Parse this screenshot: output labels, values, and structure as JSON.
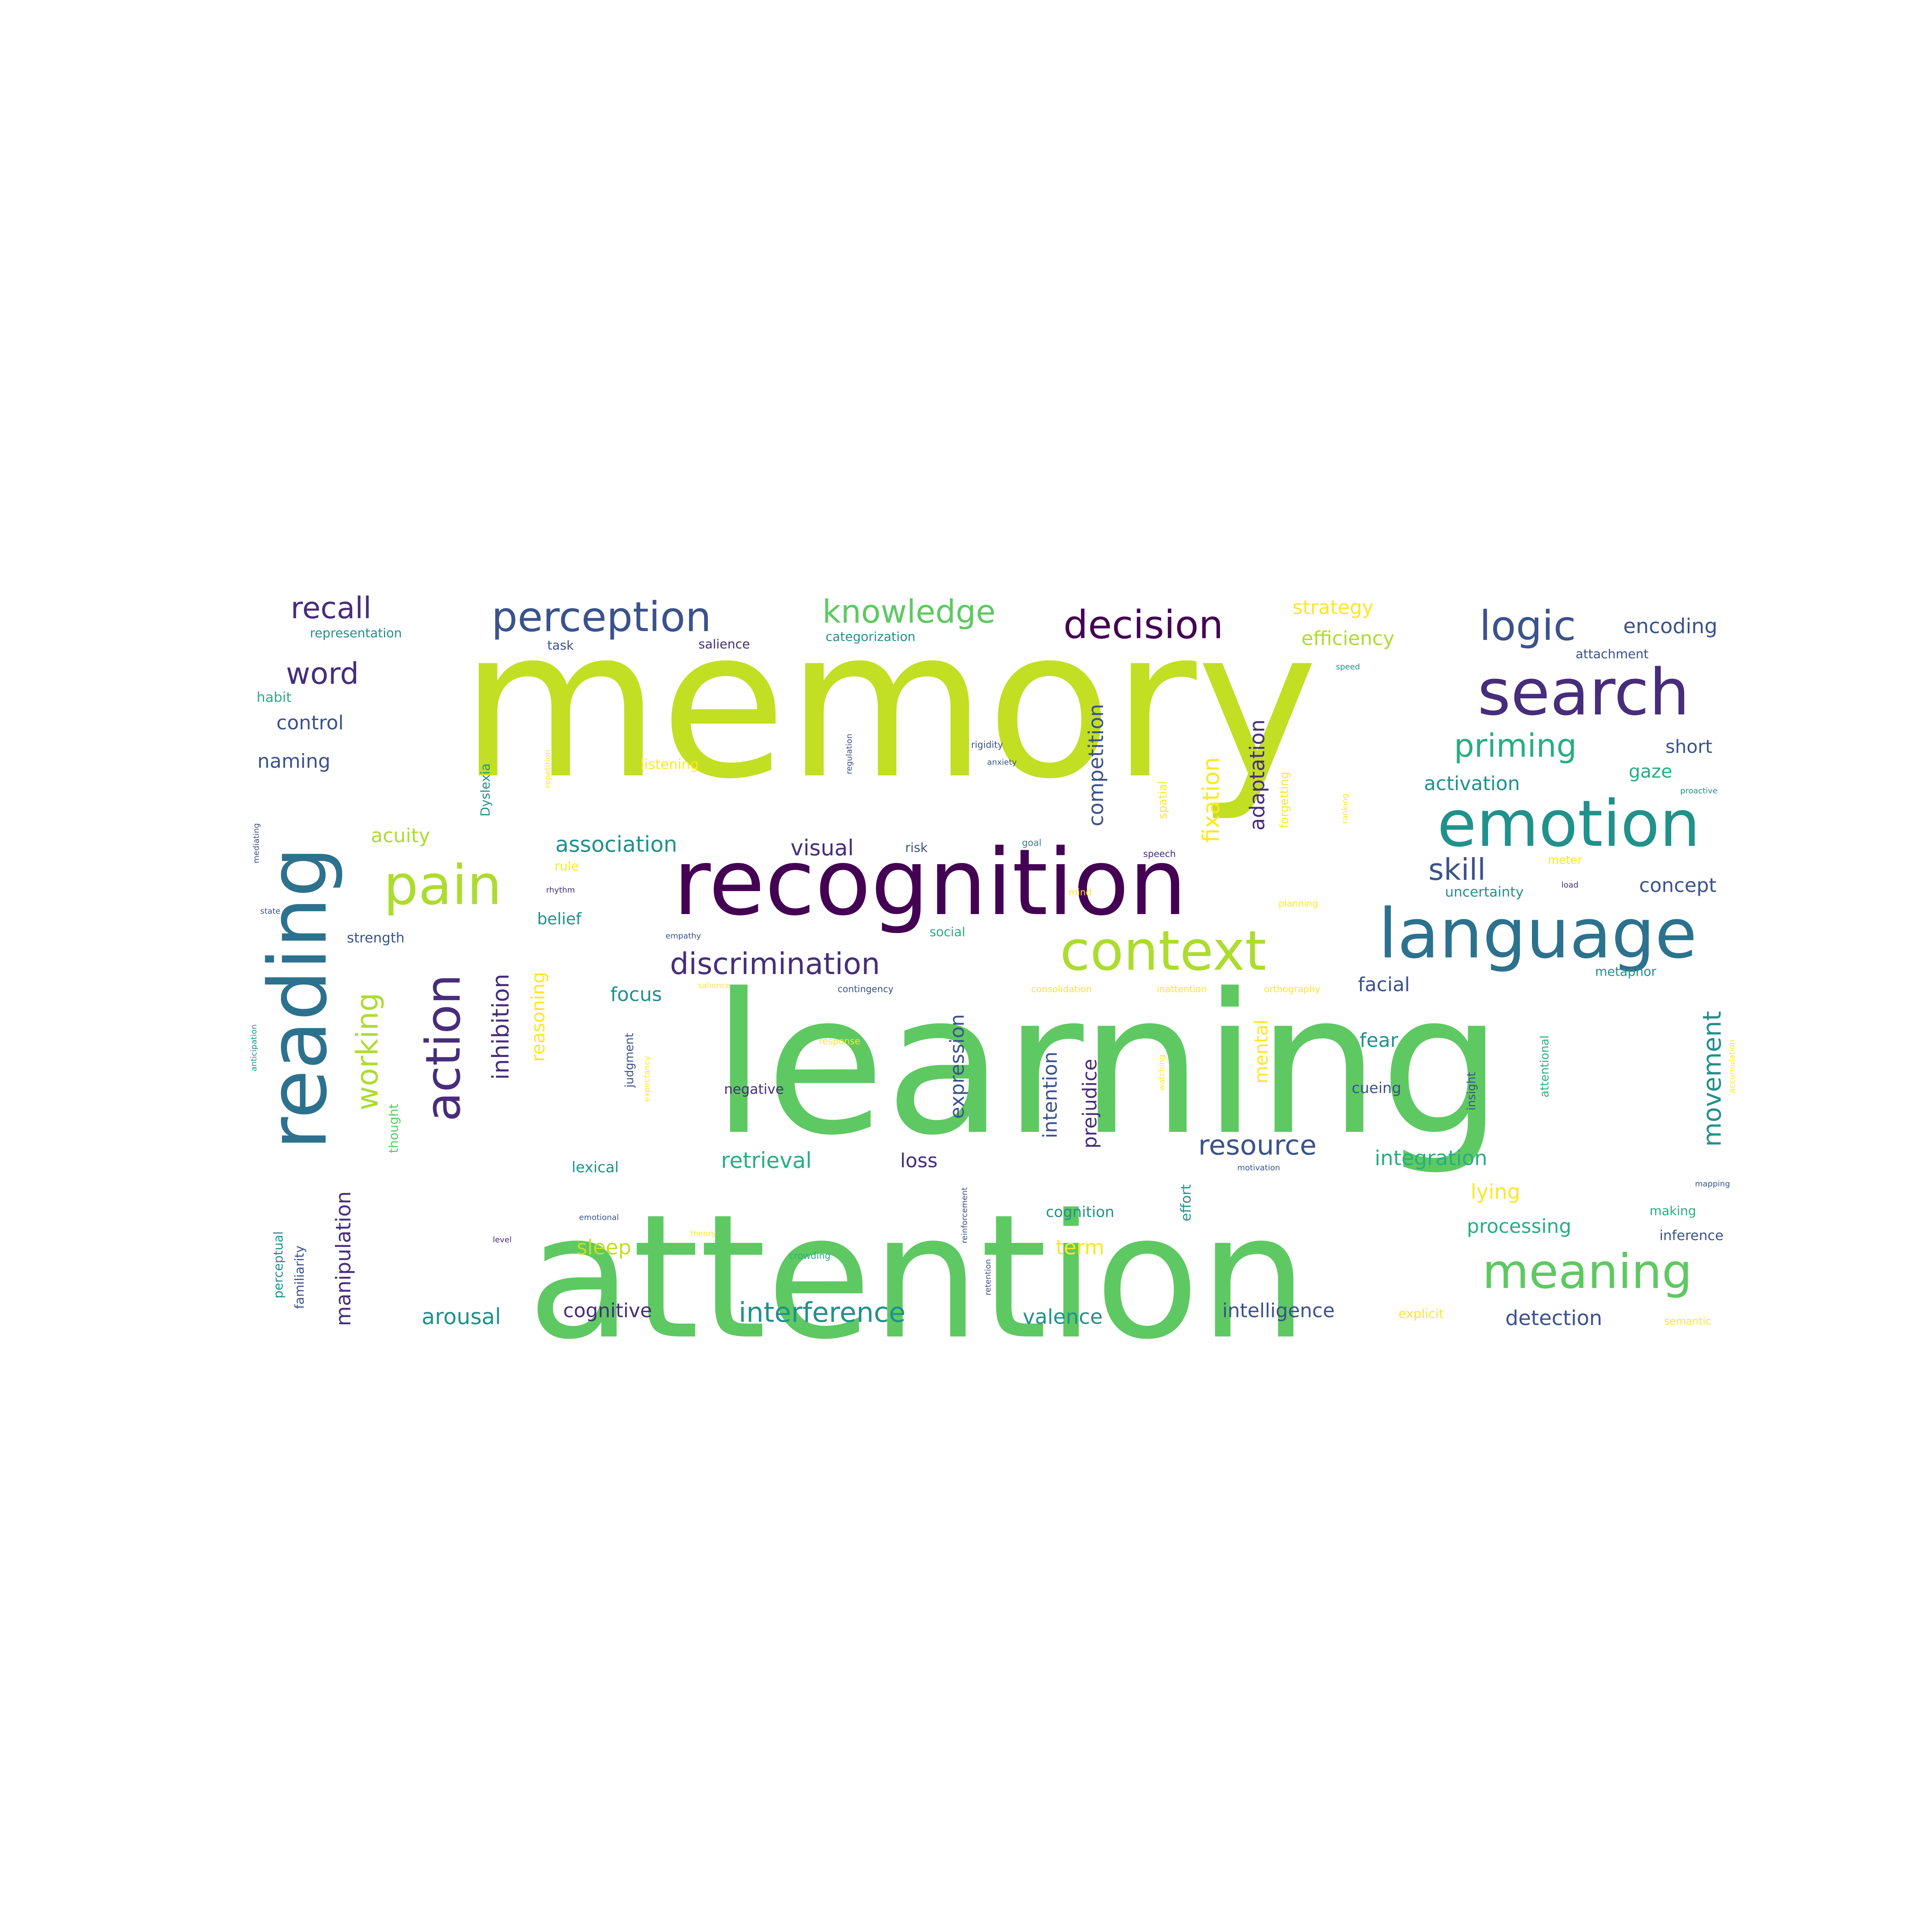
{
  "colors": {
    "purple": "#440154",
    "indigo": "#472d7b",
    "slate": "#3b528b",
    "blue": "#2c728e",
    "teal": "#21918c",
    "sea": "#28ae80",
    "green": "#5ec962",
    "lime": "#addc30",
    "yellowgreen": "#c2df23",
    "yellow": "#fde725"
  },
  "words": [
    {
      "text": "memory",
      "color": "yellowgreen"
    },
    {
      "text": "learning",
      "color": "green"
    },
    {
      "text": "attention",
      "color": "green"
    },
    {
      "text": "recognition",
      "color": "purple"
    },
    {
      "text": "reading",
      "color": "blue"
    },
    {
      "text": "language",
      "color": "blue"
    },
    {
      "text": "emotion",
      "color": "teal"
    },
    {
      "text": "search",
      "color": "indigo"
    },
    {
      "text": "context",
      "color": "lime"
    },
    {
      "text": "pain",
      "color": "lime"
    },
    {
      "text": "action",
      "color": "indigo"
    },
    {
      "text": "meaning",
      "color": "green"
    },
    {
      "text": "logic",
      "color": "slate"
    },
    {
      "text": "perception",
      "color": "slate"
    },
    {
      "text": "decision",
      "color": "purple"
    },
    {
      "text": "knowledge",
      "color": "green"
    },
    {
      "text": "recall",
      "color": "indigo"
    },
    {
      "text": "priming",
      "color": "sea"
    },
    {
      "text": "discrimination",
      "color": "indigo"
    },
    {
      "text": "word",
      "color": "indigo"
    },
    {
      "text": "working",
      "color": "lime"
    },
    {
      "text": "skill",
      "color": "slate"
    },
    {
      "text": "interference",
      "color": "teal"
    },
    {
      "text": "resource",
      "color": "slate"
    },
    {
      "text": "movement",
      "color": "teal"
    },
    {
      "text": "inhibition",
      "color": "indigo"
    },
    {
      "text": "fixation",
      "color": "yellow"
    },
    {
      "text": "manipulation",
      "color": "indigo"
    },
    {
      "text": "competition",
      "color": "slate"
    },
    {
      "text": "adaptation",
      "color": "indigo"
    },
    {
      "text": "association",
      "color": "teal"
    },
    {
      "text": "visual",
      "color": "indigo"
    },
    {
      "text": "encoding",
      "color": "slate"
    },
    {
      "text": "strategy",
      "color": "yellow"
    },
    {
      "text": "efficiency",
      "color": "lime"
    },
    {
      "text": "control",
      "color": "slate"
    },
    {
      "text": "naming",
      "color": "slate"
    },
    {
      "text": "acuity",
      "color": "lime"
    },
    {
      "text": "activation",
      "color": "teal"
    },
    {
      "text": "short",
      "color": "slate"
    },
    {
      "text": "gaze",
      "color": "sea"
    },
    {
      "text": "concept",
      "color": "slate"
    },
    {
      "text": "expression",
      "color": "slate"
    },
    {
      "text": "intention",
      "color": "slate"
    },
    {
      "text": "prejudice",
      "color": "indigo"
    },
    {
      "text": "reasoning",
      "color": "yellow"
    },
    {
      "text": "facial",
      "color": "slate"
    },
    {
      "text": "fear",
      "color": "teal"
    },
    {
      "text": "focus",
      "color": "teal"
    },
    {
      "text": "retrieval",
      "color": "sea"
    },
    {
      "text": "loss",
      "color": "indigo"
    },
    {
      "text": "integration",
      "color": "sea"
    },
    {
      "text": "lying",
      "color": "yellow"
    },
    {
      "text": "processing",
      "color": "sea"
    },
    {
      "text": "sleep",
      "color": "yellowgreen"
    },
    {
      "text": "term",
      "color": "yellow"
    },
    {
      "text": "arousal",
      "color": "teal"
    },
    {
      "text": "cognitive",
      "color": "indigo"
    },
    {
      "text": "valence",
      "color": "teal"
    },
    {
      "text": "intelligence",
      "color": "slate"
    },
    {
      "text": "detection",
      "color": "slate"
    },
    {
      "text": "mental",
      "color": "yellow"
    },
    {
      "text": "belief",
      "color": "teal"
    },
    {
      "text": "lexical",
      "color": "teal"
    },
    {
      "text": "cognition",
      "color": "teal"
    },
    {
      "text": "cueing",
      "color": "slate"
    },
    {
      "text": "uncertainty",
      "color": "teal"
    },
    {
      "text": "representation",
      "color": "teal"
    },
    {
      "text": "task",
      "color": "slate"
    },
    {
      "text": "salience",
      "color": "indigo"
    },
    {
      "text": "categorization",
      "color": "teal"
    },
    {
      "text": "attachment",
      "color": "slate"
    },
    {
      "text": "habit",
      "color": "sea"
    },
    {
      "text": "listening",
      "color": "yellow"
    },
    {
      "text": "risk",
      "color": "slate"
    },
    {
      "text": "rule",
      "color": "yellow"
    },
    {
      "text": "strength",
      "color": "slate"
    },
    {
      "text": "social",
      "color": "sea"
    },
    {
      "text": "negative",
      "color": "indigo"
    },
    {
      "text": "metaphor",
      "color": "teal"
    },
    {
      "text": "meter",
      "color": "yellow"
    },
    {
      "text": "explicit",
      "color": "yellow"
    },
    {
      "text": "semantic",
      "color": "yellow"
    },
    {
      "text": "inference",
      "color": "slate"
    },
    {
      "text": "making",
      "color": "sea"
    },
    {
      "text": "effort",
      "color": "teal"
    },
    {
      "text": "thought",
      "color": "green"
    },
    {
      "text": "perceptual",
      "color": "teal"
    },
    {
      "text": "familiarity",
      "color": "slate"
    },
    {
      "text": "Dyslexia",
      "color": "teal"
    },
    {
      "text": "judgment",
      "color": "slate"
    },
    {
      "text": "forgetting",
      "color": "yellow"
    },
    {
      "text": "spatial",
      "color": "yellow"
    },
    {
      "text": "attentional",
      "color": "sea"
    },
    {
      "text": "insight",
      "color": "slate"
    },
    {
      "text": "consolidation",
      "color": "yellow"
    },
    {
      "text": "inattention",
      "color": "yellow"
    },
    {
      "text": "orthography",
      "color": "yellow"
    },
    {
      "text": "contingency",
      "color": "slate"
    },
    {
      "text": "response",
      "color": "yellow"
    },
    {
      "text": "rigidity",
      "color": "slate"
    },
    {
      "text": "anxiety",
      "color": "slate"
    },
    {
      "text": "regulation",
      "color": "slate"
    },
    {
      "text": "repetition",
      "color": "yellow"
    },
    {
      "text": "goal",
      "color": "teal"
    },
    {
      "text": "speech",
      "color": "indigo"
    },
    {
      "text": "mind",
      "color": "yellow"
    },
    {
      "text": "planning",
      "color": "yellow"
    },
    {
      "text": "load",
      "color": "indigo"
    },
    {
      "text": "speed",
      "color": "teal"
    },
    {
      "text": "proactive",
      "color": "teal"
    },
    {
      "text": "rhythm",
      "color": "indigo"
    },
    {
      "text": "empathy",
      "color": "slate"
    },
    {
      "text": "state",
      "color": "slate"
    },
    {
      "text": "mediating",
      "color": "slate"
    },
    {
      "text": "anticipation",
      "color": "teal"
    },
    {
      "text": "salience",
      "color": "yellow"
    },
    {
      "text": "emotional",
      "color": "slate"
    },
    {
      "text": "theory",
      "color": "yellow"
    },
    {
      "text": "crowding",
      "color": "sea"
    },
    {
      "text": "reinforcement",
      "color": "slate"
    },
    {
      "text": "retention",
      "color": "slate"
    },
    {
      "text": "motivation",
      "color": "slate"
    },
    {
      "text": "watching",
      "color": "yellow"
    },
    {
      "text": "mapping",
      "color": "slate"
    },
    {
      "text": "level",
      "color": "indigo"
    },
    {
      "text": "accumulation",
      "color": "yellow"
    },
    {
      "text": "expectancy",
      "color": "yellow"
    },
    {
      "text": "ranking",
      "color": "yellow"
    }
  ]
}
